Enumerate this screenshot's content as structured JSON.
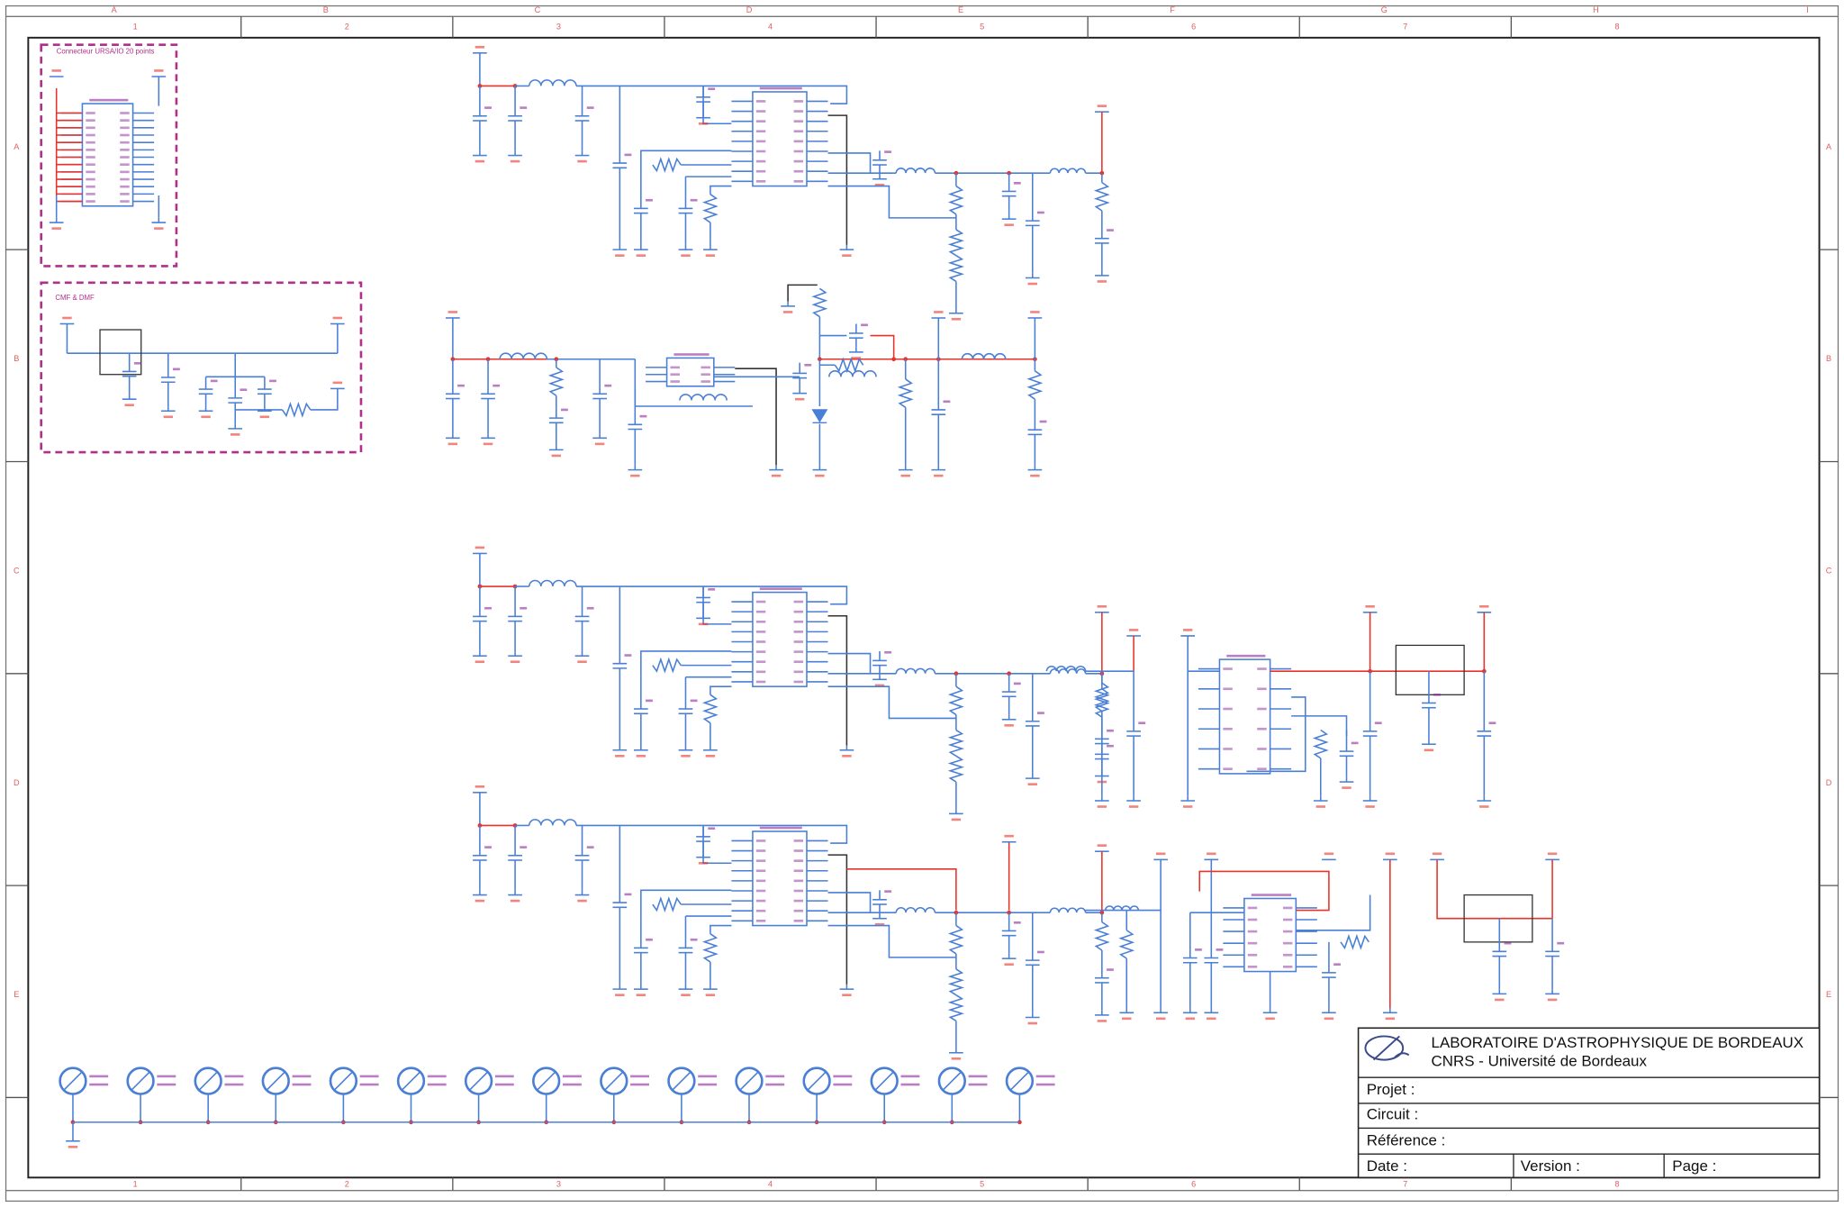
{
  "frame": {
    "columns": [
      "A",
      "B",
      "C",
      "D",
      "E",
      "F",
      "G",
      "H",
      "I"
    ],
    "numbers": [
      "1",
      "2",
      "3",
      "4",
      "5",
      "6",
      "7",
      "8"
    ],
    "rows": [
      "A",
      "B",
      "C",
      "D",
      "E"
    ]
  },
  "sections": [
    "Connecteur URSA/IO 20 points",
    "CMF & DMF"
  ],
  "title_block": {
    "lab": "LABORATOIRE D'ASTROPHYSIQUE DE BORDEAUX",
    "institution": "CNRS - Université de Bordeaux",
    "fields": [
      "Projet :",
      "Circuit :",
      "Référence :"
    ],
    "bottom": [
      "Date :",
      "Version :",
      "Page :"
    ]
  }
}
